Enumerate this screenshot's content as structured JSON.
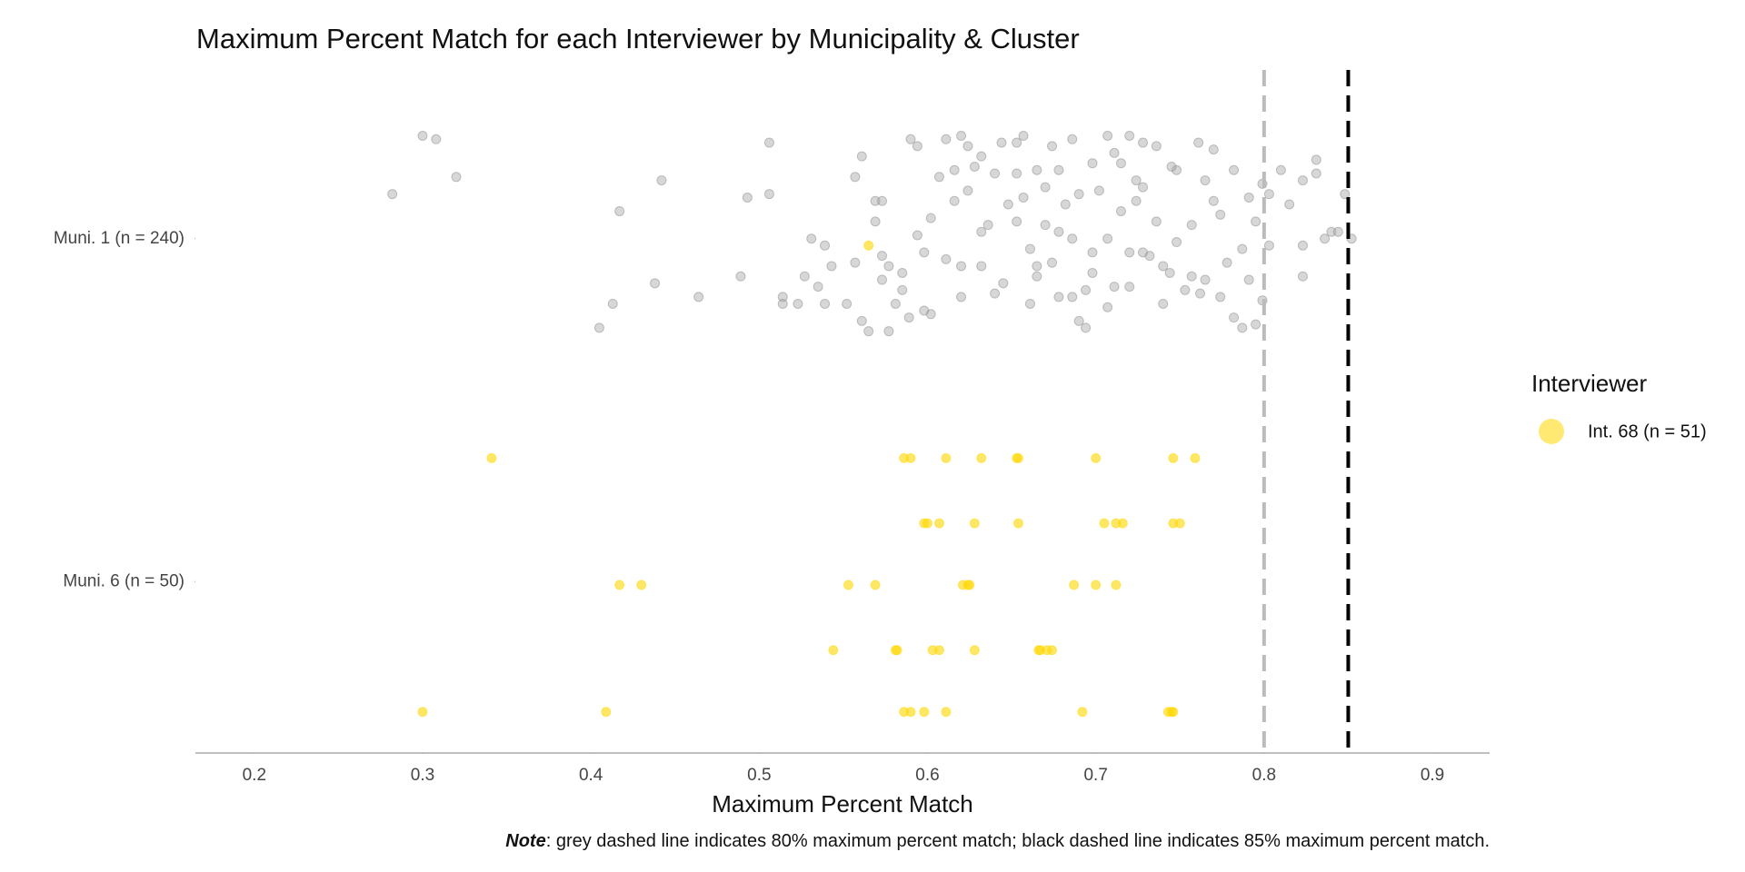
{
  "chart_data": {
    "type": "scatter",
    "title": "Maximum Percent Match for each Interviewer by Municipality & Cluster",
    "xlabel": "Maximum Percent Match",
    "xlim": [
      0.165,
      0.934
    ],
    "xticks": [
      0.2,
      0.3,
      0.4,
      0.5,
      0.6,
      0.7,
      0.8,
      0.9
    ],
    "ylim": [
      0.5,
      2.5
    ],
    "yticks": [
      {
        "value": 1,
        "label": "Muni. 6 (n = 50)"
      },
      {
        "value": 2,
        "label": "Muni. 1 (n = 240)"
      }
    ],
    "grid": false,
    "legend_title": "Interviewer",
    "legend_position": "right",
    "reference_lines": [
      {
        "value": 0.8,
        "color": "#bbbbbb"
      },
      {
        "value": 0.85,
        "color": "#000000"
      }
    ],
    "note": {
      "label": "Note",
      "text": ": grey dashed line indicates 80% maximum percent match; black dashed line indicates 85% maximum percent match."
    },
    "series": [
      {
        "color": "#a6a6a6",
        "x": [
          0.3,
          0.308,
          0.32,
          0.282,
          0.405,
          0.413,
          0.417,
          0.438,
          0.442,
          0.464,
          0.489,
          0.493,
          0.506,
          0.506,
          0.514,
          0.514,
          0.523,
          0.527,
          0.531,
          0.535,
          0.539,
          0.543,
          0.539,
          0.552,
          0.557,
          0.561,
          0.557,
          0.561,
          0.565,
          0.569,
          0.573,
          0.569,
          0.573,
          0.577,
          0.573,
          0.581,
          0.585,
          0.589,
          0.577,
          0.59,
          0.594,
          0.594,
          0.598,
          0.602,
          0.602,
          0.607,
          0.611,
          0.611,
          0.616,
          0.62,
          0.62,
          0.624,
          0.624,
          0.628,
          0.632,
          0.636,
          0.632,
          0.64,
          0.64,
          0.644,
          0.648,
          0.653,
          0.653,
          0.657,
          0.657,
          0.661,
          0.661,
          0.665,
          0.665,
          0.67,
          0.67,
          0.674,
          0.678,
          0.674,
          0.678,
          0.682,
          0.686,
          0.686,
          0.69,
          0.694,
          0.694,
          0.698,
          0.698,
          0.702,
          0.707,
          0.707,
          0.711,
          0.715,
          0.715,
          0.72,
          0.72,
          0.724,
          0.728,
          0.728,
          0.732,
          0.736,
          0.736,
          0.74,
          0.744,
          0.748,
          0.748,
          0.753,
          0.757,
          0.761,
          0.765,
          0.765,
          0.77,
          0.774,
          0.774,
          0.778,
          0.782,
          0.782,
          0.787,
          0.791,
          0.791,
          0.795,
          0.799,
          0.799,
          0.803,
          0.803,
          0.81,
          0.815,
          0.823,
          0.823,
          0.823,
          0.831,
          0.831,
          0.836,
          0.84,
          0.844,
          0.848,
          0.852,
          0.795,
          0.787,
          0.728,
          0.74,
          0.757,
          0.686,
          0.69,
          0.665,
          0.645,
          0.62,
          0.598,
          0.585,
          0.616,
          0.632,
          0.653,
          0.711,
          0.724,
          0.745,
          0.707,
          0.72,
          0.762,
          0.77,
          0.698,
          0.678
        ],
        "y": [
          2.3,
          2.29,
          2.18,
          2.13,
          1.74,
          1.81,
          2.08,
          1.87,
          2.17,
          1.83,
          1.89,
          2.12,
          2.28,
          2.13,
          1.83,
          1.81,
          1.81,
          1.89,
          2.0,
          1.86,
          1.98,
          1.92,
          1.81,
          1.81,
          2.18,
          2.24,
          1.93,
          1.76,
          1.73,
          2.11,
          2.11,
          2.05,
          1.95,
          1.92,
          1.88,
          1.81,
          1.85,
          1.77,
          1.73,
          2.29,
          2.27,
          2.01,
          1.96,
          2.06,
          1.78,
          2.18,
          2.29,
          1.94,
          2.2,
          2.3,
          1.92,
          2.27,
          2.14,
          2.21,
          2.02,
          2.04,
          1.92,
          2.19,
          1.84,
          2.28,
          2.1,
          2.19,
          2.05,
          2.3,
          2.12,
          1.97,
          1.81,
          2.2,
          1.89,
          2.15,
          2.04,
          2.27,
          2.2,
          1.93,
          1.83,
          2.1,
          2.29,
          2.0,
          2.13,
          1.85,
          1.74,
          2.22,
          1.96,
          2.14,
          2.3,
          2.0,
          1.86,
          2.08,
          2.22,
          2.3,
          1.96,
          2.11,
          2.28,
          2.15,
          1.95,
          2.27,
          2.05,
          1.81,
          1.9,
          2.2,
          1.99,
          1.85,
          2.04,
          2.28,
          2.17,
          1.88,
          2.26,
          2.07,
          1.83,
          1.93,
          2.2,
          1.77,
          1.97,
          2.12,
          1.88,
          2.05,
          2.16,
          1.82,
          1.98,
          2.13,
          2.2,
          2.1,
          2.17,
          1.98,
          1.89,
          2.23,
          2.19,
          2.0,
          2.02,
          2.02,
          2.13,
          2.0,
          1.75,
          1.74,
          1.96,
          1.92,
          1.89,
          1.83,
          1.76,
          1.92,
          1.87,
          1.83,
          1.79,
          1.9,
          2.11,
          2.24,
          2.28,
          2.25,
          2.17,
          2.21,
          1.8,
          1.86,
          1.84,
          2.11,
          1.9,
          2.02
        ]
      },
      {
        "name": "Int. 68 (n = 51)",
        "color": "#ffd700",
        "x": [
          0.565,
          0.341,
          0.586,
          0.59,
          0.611,
          0.632,
          0.653,
          0.654,
          0.7,
          0.746,
          0.759,
          0.598,
          0.6,
          0.607,
          0.628,
          0.654,
          0.705,
          0.712,
          0.716,
          0.746,
          0.75,
          0.417,
          0.43,
          0.553,
          0.569,
          0.621,
          0.624,
          0.625,
          0.687,
          0.7,
          0.712,
          0.544,
          0.581,
          0.582,
          0.603,
          0.607,
          0.628,
          0.666,
          0.667,
          0.671,
          0.674,
          0.3,
          0.409,
          0.586,
          0.59,
          0.598,
          0.611,
          0.692,
          0.743,
          0.745,
          0.746
        ],
        "y": [
          1.98,
          1.36,
          1.36,
          1.36,
          1.36,
          1.36,
          1.36,
          1.36,
          1.36,
          1.36,
          1.36,
          1.17,
          1.17,
          1.17,
          1.17,
          1.17,
          1.17,
          1.17,
          1.17,
          1.17,
          1.17,
          0.99,
          0.99,
          0.99,
          0.99,
          0.99,
          0.99,
          0.99,
          0.99,
          0.99,
          0.99,
          0.8,
          0.8,
          0.8,
          0.8,
          0.8,
          0.8,
          0.8,
          0.8,
          0.8,
          0.8,
          0.62,
          0.62,
          0.62,
          0.62,
          0.62,
          0.62,
          0.62,
          0.62,
          0.62,
          0.62
        ]
      }
    ]
  }
}
